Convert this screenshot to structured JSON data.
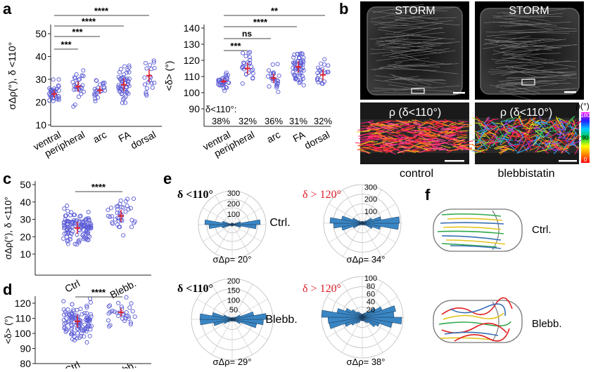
{
  "panel_letters": {
    "a": "a",
    "b": "b",
    "c": "c",
    "d": "d",
    "e": "e",
    "f": "f"
  },
  "colors": {
    "point": "#5b5bd6",
    "mean": "#e0202a",
    "polar_bar": "#3a86c4",
    "red_label": "#e0202a"
  },
  "panel_a_left": {
    "ylabel": "σΔρ(°), δ <110°",
    "yticks": [
      "10",
      "20",
      "30",
      "40",
      "50"
    ],
    "categories": [
      "ventral",
      "peripheral",
      "arc",
      "FA",
      "dorsal"
    ],
    "sig": [
      "***",
      "***",
      "****",
      "****"
    ]
  },
  "panel_a_right": {
    "ylabel": "<δ> (°)",
    "yticks": [
      "90",
      "100",
      "110",
      "120",
      "130",
      "140"
    ],
    "categories": [
      "ventral",
      "peripheral",
      "arc",
      "FA",
      "dorsal"
    ],
    "sig": [
      "***",
      "ns",
      "****",
      "**"
    ],
    "note": "δ<110°:",
    "percents": [
      "38%",
      "32%",
      "36%",
      "31%",
      "32%"
    ]
  },
  "panel_b": {
    "storm_label": "STORM",
    "rho_label": "ρ (δ<110°)",
    "control": "control",
    "blebb": "blebbistatin",
    "colorbar_title": "ρ(°)",
    "colorbar_ticks": [
      "180",
      "90",
      "0"
    ]
  },
  "panel_c": {
    "ylabel": "σΔρ(°), δ <110°",
    "yticks": [
      "10",
      "20",
      "30",
      "40",
      "50"
    ],
    "categories": [
      "Ctrl",
      "Blebb."
    ],
    "sig": "****"
  },
  "panel_d": {
    "ylabel": "<δ> (°)",
    "yticks": [
      "80",
      "90",
      "100",
      "110",
      "120"
    ],
    "categories": [
      "Ctrl",
      "Blebb."
    ],
    "sig": "****"
  },
  "panel_e": {
    "tl_delta": "δ <110°",
    "tl_sigma": "σΔρ= 20°",
    "tl_ticks": [
      "300",
      "200",
      "100"
    ],
    "tr_delta": "δ > 120°",
    "tr_sigma": "σΔρ= 34°",
    "tr_ticks": [
      "300",
      "200",
      "100"
    ],
    "bl_delta": "δ <110°",
    "bl_sigma": "σΔρ= 29°",
    "bl_ticks": [
      "200",
      "150",
      "100",
      "50"
    ],
    "br_delta": "δ > 120°",
    "br_sigma": "σΔρ= 38°",
    "br_ticks": [
      "100",
      "80",
      "60",
      "40",
      "20"
    ],
    "ctrl": "Ctrl.",
    "blebb": "Blebb."
  },
  "panel_f": {
    "ctrl": "Ctrl.",
    "blebb": "Blebb."
  },
  "chart_data": [
    {
      "type": "scatter",
      "panel": "a-left",
      "categories": [
        "ventral",
        "peripheral",
        "arc",
        "FA",
        "dorsal"
      ],
      "means": [
        27,
        31,
        29,
        32,
        37
      ],
      "ylim": [
        10,
        55
      ],
      "ylabel": "σΔρ(°), δ <110°"
    },
    {
      "type": "scatter",
      "panel": "a-right",
      "categories": [
        "ventral",
        "peripheral",
        "arc",
        "FA",
        "dorsal"
      ],
      "means": [
        107,
        115,
        109,
        116,
        111
      ],
      "ylim": [
        85,
        142
      ],
      "ylabel": "<δ> (°)"
    },
    {
      "type": "scatter",
      "panel": "c",
      "categories": [
        "Ctrl",
        "Blebb."
      ],
      "means": [
        25,
        32
      ],
      "ylim": [
        0,
        55
      ]
    },
    {
      "type": "scatter",
      "panel": "d",
      "categories": [
        "Ctrl",
        "Blebb."
      ],
      "means": [
        108,
        114
      ],
      "ylim": [
        80,
        125
      ]
    }
  ]
}
